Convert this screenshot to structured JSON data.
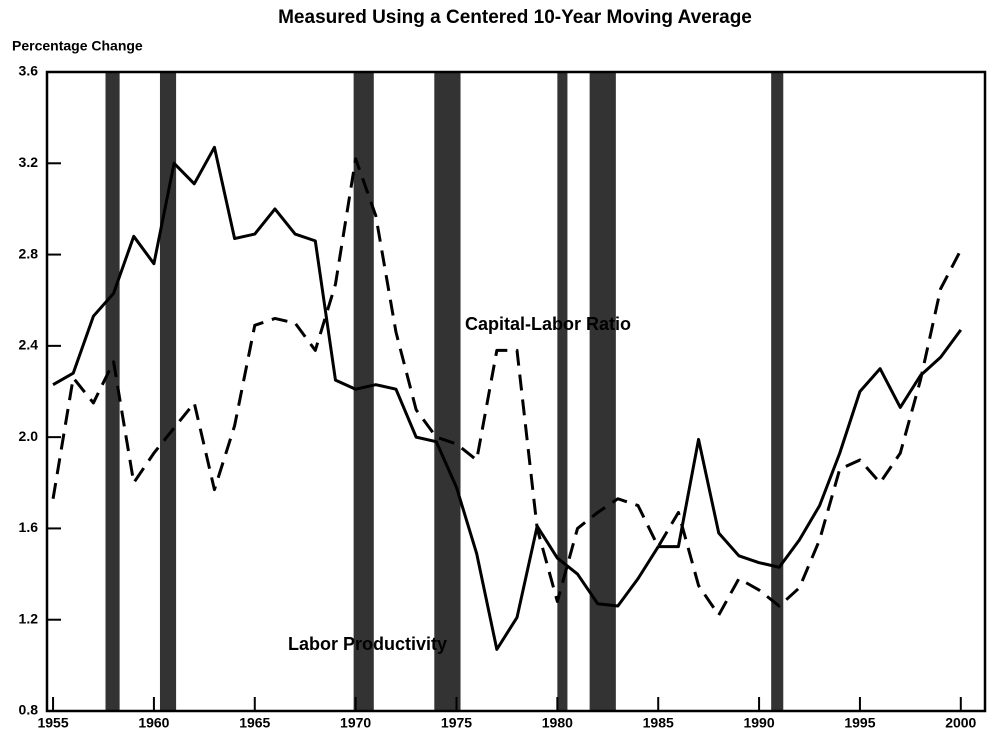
{
  "chart_data": {
    "type": "line",
    "title": "Measured Using a Centered 10-Year Moving Average",
    "y_label": "Percentage Change",
    "x": [
      1955,
      1956,
      1957,
      1958,
      1959,
      1960,
      1961,
      1962,
      1963,
      1964,
      1965,
      1966,
      1967,
      1968,
      1969,
      1970,
      1971,
      1972,
      1973,
      1974,
      1975,
      1976,
      1977,
      1978,
      1979,
      1980,
      1981,
      1982,
      1983,
      1984,
      1985,
      1986,
      1987,
      1988,
      1989,
      1990,
      1991,
      1992,
      1993,
      1994,
      1995,
      1996,
      1997,
      1998,
      1999,
      2000
    ],
    "series": [
      {
        "name": "Labor Productivity",
        "color": "#000000",
        "dash": false,
        "values": [
          2.23,
          2.28,
          2.53,
          2.63,
          2.88,
          2.76,
          3.2,
          3.11,
          3.27,
          2.87,
          2.89,
          3.0,
          2.89,
          2.86,
          2.25,
          2.21,
          2.23,
          2.21,
          2.0,
          1.98,
          1.78,
          1.49,
          1.07,
          1.21,
          1.61,
          1.47,
          1.4,
          1.27,
          1.26,
          1.38,
          1.52,
          1.52,
          1.99,
          1.58,
          1.48,
          1.45,
          1.43,
          1.55,
          1.7,
          1.93,
          2.2,
          2.3,
          2.13,
          2.27,
          2.35,
          2.47
        ]
      },
      {
        "name": "Capital-Labor Ratio",
        "color": "#000000",
        "dash": true,
        "values": [
          1.73,
          2.26,
          2.15,
          2.33,
          1.8,
          1.93,
          2.04,
          2.15,
          1.77,
          2.05,
          2.49,
          2.52,
          2.5,
          2.38,
          2.67,
          3.22,
          2.97,
          2.46,
          2.12,
          2.0,
          1.97,
          1.9,
          2.38,
          2.38,
          1.6,
          1.28,
          1.6,
          1.67,
          1.73,
          1.7,
          1.52,
          1.67,
          1.35,
          1.22,
          1.38,
          1.33,
          1.26,
          1.34,
          1.55,
          1.86,
          1.9,
          1.8,
          1.93,
          2.25,
          2.65,
          2.82
        ]
      }
    ],
    "recessions": [
      [
        1957.6,
        1958.3
      ],
      [
        1960.3,
        1961.1
      ],
      [
        1969.9,
        1970.9
      ],
      [
        1973.9,
        1975.2
      ],
      [
        1980.0,
        1980.5
      ],
      [
        1981.6,
        1982.9
      ],
      [
        1990.6,
        1991.2
      ]
    ],
    "recession_color": "#333333",
    "xlim": [
      1954.7,
      2001.2
    ],
    "xticks": [
      1955,
      1960,
      1965,
      1970,
      1975,
      1980,
      1985,
      1990,
      1995,
      2000
    ],
    "ylim": [
      0.8,
      3.6
    ],
    "yticks": [
      0.8,
      1.2,
      1.6,
      {
        "value": 2.0,
        "label": "2.0"
      },
      2.4,
      2.8,
      3.2,
      3.6
    ]
  }
}
